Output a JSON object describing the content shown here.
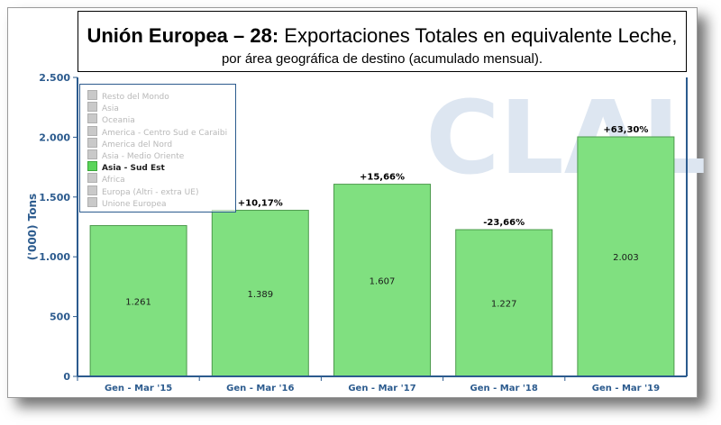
{
  "title": {
    "bold": "Unión Europea – 28:",
    "rest": " Exportaciones Totales en equivalente Leche,",
    "subtitle": "por área geográfica de destino (acumulado mensual)."
  },
  "legend": [
    {
      "label": "Resto del Mondo",
      "active": false
    },
    {
      "label": "Asia",
      "active": false
    },
    {
      "label": "Oceania",
      "active": false
    },
    {
      "label": "America - Centro Sud e Caraibi",
      "active": false
    },
    {
      "label": "America del Nord",
      "active": false
    },
    {
      "label": "Asia - Medio Oriente",
      "active": false
    },
    {
      "label": "Asia - Sud Est",
      "active": true
    },
    {
      "label": "Africa",
      "active": false
    },
    {
      "label": "Europa (Altri - extra UE)",
      "active": false
    },
    {
      "label": "Unione Europea",
      "active": false
    }
  ],
  "colors": {
    "bar": "#80e080",
    "bar_border": "#4c9a4c",
    "axis": "#2c5b8e",
    "watermark": "#dde6f1"
  },
  "watermark": "CLAL",
  "chart_data": {
    "type": "bar",
    "categories": [
      "Gen - Mar '15",
      "Gen - Mar '16",
      "Gen - Mar '17",
      "Gen - Mar '18",
      "Gen - Mar '19"
    ],
    "values": [
      1261,
      1389,
      1607,
      1227,
      2003
    ],
    "value_labels": [
      "1.261",
      "1.389",
      "1.607",
      "1.227",
      "2.003"
    ],
    "change_labels": [
      "",
      "+10,17%",
      "+15,66%",
      "-23,66%",
      "+63,30%"
    ],
    "ylabel": "('000) Tons",
    "ylim": [
      0,
      2500
    ],
    "yticks": [
      0,
      500,
      1000,
      1500,
      2000,
      2500
    ],
    "ytick_labels": [
      "0",
      "500",
      "1.000",
      "1.500",
      "2.000",
      "2.500"
    ],
    "grid": false,
    "legend_position": "top-left"
  }
}
